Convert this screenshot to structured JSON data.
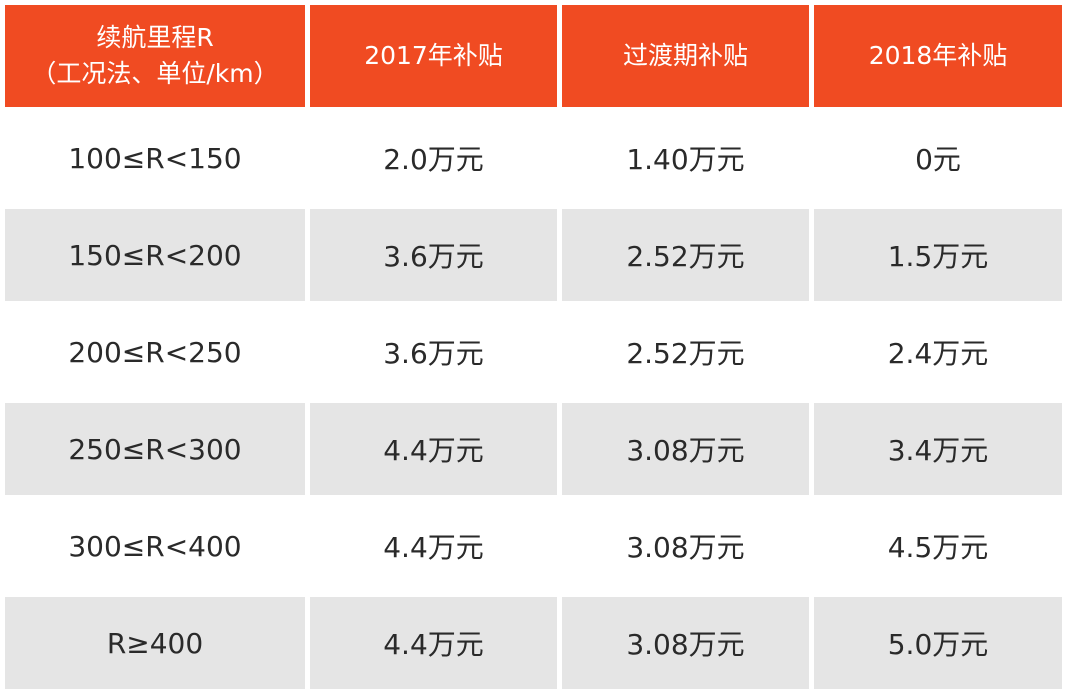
{
  "table": {
    "header": [
      [
        "续航里程R",
        "（工况法、单位/km）"
      ],
      [
        "2017年补贴"
      ],
      [
        "过渡期补贴"
      ],
      [
        "2018年补贴"
      ]
    ],
    "rows": [
      [
        "100≤R<150",
        "2.0万元",
        "1.40万元",
        "0元"
      ],
      [
        "150≤R<200",
        "3.6万元",
        "2.52万元",
        "1.5万元"
      ],
      [
        "200≤R<250",
        "3.6万元",
        "2.52万元",
        "2.4万元"
      ],
      [
        "250≤R<300",
        "4.4万元",
        "3.08万元",
        "3.4万元"
      ],
      [
        "300≤R<400",
        "4.4万元",
        "3.08万元",
        "4.5万元"
      ],
      [
        "R≥400",
        "4.4万元",
        "3.08万元",
        "5.0万元"
      ]
    ]
  }
}
